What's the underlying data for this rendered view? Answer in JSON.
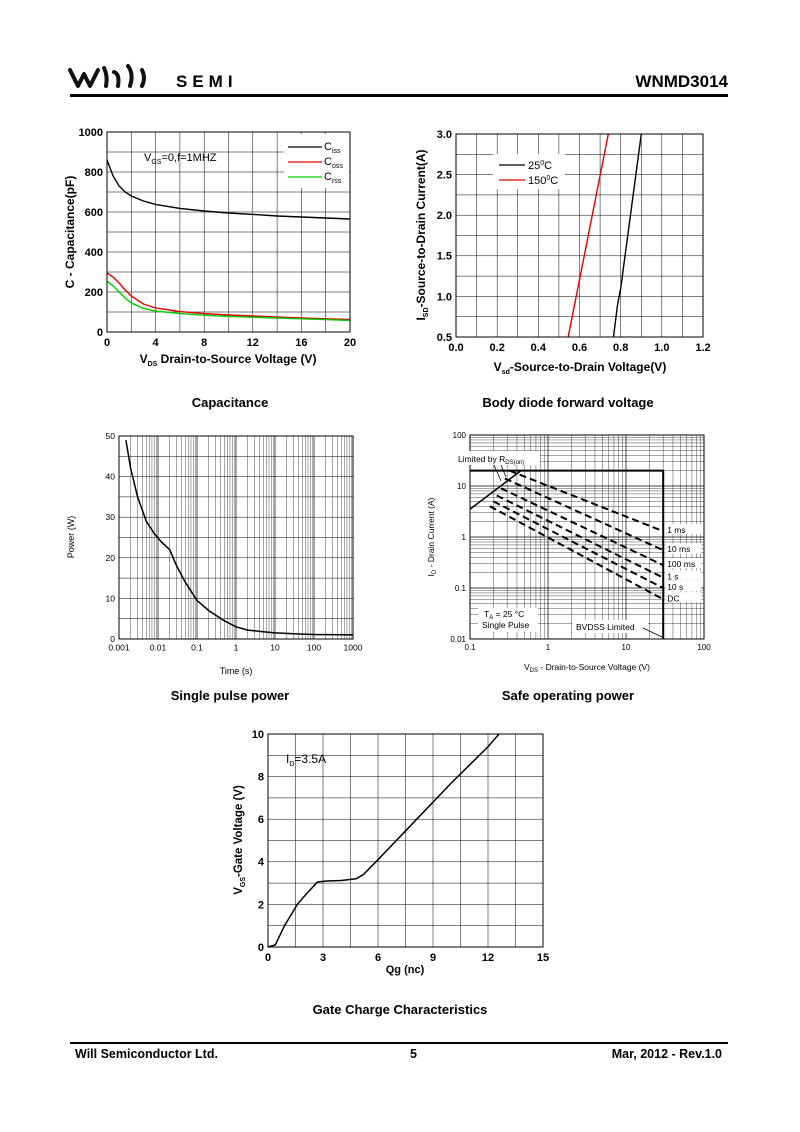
{
  "header": {
    "brand": "SEMI",
    "part_number": "WNMD3014"
  },
  "footer": {
    "company": "Will Semiconductor Ltd.",
    "page": "5",
    "revision": "Mar, 2012 - Rev.1.0"
  },
  "colors": {
    "black": "#000000",
    "red": "#e00000",
    "green": "#00cc00"
  },
  "chart_data": [
    {
      "id": "capacitance",
      "type": "line",
      "caption": "Capacitance",
      "xlabel": "V_DS Drain-to-Source Voltage (V)",
      "ylabel": "C - Capacitance(pF)",
      "annotation": "V_GS=0,f=1MHZ",
      "xlim": [
        0,
        20
      ],
      "ylim": [
        0,
        1000
      ],
      "xticks": [
        0,
        4,
        8,
        12,
        16,
        20
      ],
      "yticks": [
        0,
        200,
        400,
        600,
        800,
        1000
      ],
      "legend_position": "top-right",
      "series": [
        {
          "name": "C_iss",
          "color": "#000000",
          "x": [
            0,
            0.5,
            1,
            1.5,
            2,
            3,
            4,
            6,
            8,
            10,
            12,
            14,
            16,
            18,
            20
          ],
          "y": [
            860,
            780,
            730,
            700,
            680,
            655,
            638,
            618,
            605,
            595,
            588,
            580,
            575,
            570,
            565
          ]
        },
        {
          "name": "C_oss",
          "color": "#e00000",
          "x": [
            0,
            0.5,
            1,
            1.5,
            2,
            3,
            4,
            6,
            8,
            10,
            12,
            14,
            16,
            18,
            20
          ],
          "y": [
            295,
            275,
            245,
            210,
            180,
            140,
            120,
            102,
            92,
            85,
            80,
            75,
            70,
            66,
            63
          ]
        },
        {
          "name": "C_rss",
          "color": "#00cc00",
          "x": [
            0,
            0.5,
            1,
            1.5,
            2,
            3,
            4,
            6,
            8,
            10,
            12,
            14,
            16,
            18,
            20
          ],
          "y": [
            255,
            230,
            200,
            170,
            145,
            118,
            105,
            92,
            84,
            78,
            74,
            70,
            66,
            62,
            58
          ]
        }
      ]
    },
    {
      "id": "body-diode",
      "type": "line",
      "caption": "Body diode forward voltage",
      "xlabel": "V_sd-Source-to-Drain Voltage(V)",
      "ylabel": "I_SD-Source-to-Drain Current(A)",
      "xlim": [
        0,
        1.2
      ],
      "ylim": [
        0.5,
        3.0
      ],
      "xticks": [
        0.0,
        0.2,
        0.4,
        0.6,
        0.8,
        1.0,
        1.2
      ],
      "yticks": [
        0.5,
        1.0,
        1.5,
        2.0,
        2.5,
        3.0
      ],
      "legend_position": "top-left",
      "series": [
        {
          "name": "25°C",
          "color": "#000000",
          "x": [
            0.765,
            0.775,
            0.785,
            0.8,
            0.9
          ],
          "y": [
            0.5,
            0.7,
            0.9,
            1.1,
            3.0
          ]
        },
        {
          "name": "150°C",
          "color": "#e00000",
          "x": [
            0.545,
            0.74
          ],
          "y": [
            0.5,
            3.0
          ]
        }
      ]
    },
    {
      "id": "single-pulse-power",
      "type": "line",
      "caption": "Single pulse power",
      "xlabel": "Time (s)",
      "ylabel": "Power (W)",
      "xscale": "log",
      "xlim": [
        0.001,
        1000
      ],
      "ylim": [
        0,
        50
      ],
      "xticks": [
        "0.001",
        "0.01",
        "0.1",
        "1",
        "10",
        "100",
        "1000"
      ],
      "yticks": [
        0,
        10,
        20,
        30,
        40,
        50
      ],
      "series": [
        {
          "x": [
            0.0015,
            0.002,
            0.003,
            0.005,
            0.008,
            0.012,
            0.02,
            0.03,
            0.05,
            0.1,
            0.2,
            0.5,
            1,
            2,
            5,
            10,
            50,
            100,
            1000
          ],
          "y": [
            49,
            42,
            35,
            29,
            26,
            24,
            22,
            18,
            14,
            9.5,
            7,
            4.5,
            3,
            2.2,
            1.8,
            1.5,
            1.2,
            1.1,
            1.0
          ]
        }
      ]
    },
    {
      "id": "safe-operating-area",
      "type": "line",
      "caption": "Safe operating power",
      "xlabel": "V_DS - Drain-to-Source Voltage (V)",
      "ylabel": "I_D - Drain Current (A)",
      "xscale": "log",
      "yscale": "log",
      "xlim": [
        0.1,
        100
      ],
      "ylim": [
        0.01,
        100
      ],
      "xticks": [
        "0.1",
        "1",
        "10",
        "100"
      ],
      "yticks": [
        "0.01",
        "0.1",
        "1",
        "10",
        "100"
      ],
      "annotations": [
        "Limited by R_DS(on)",
        "T_A = 25 °C",
        "Single Pulse",
        "BVDSS Limited"
      ],
      "series": [
        {
          "name": "1 ms",
          "x": [
            0.32,
            30
          ],
          "y": [
            20,
            1.3
          ]
        },
        {
          "name": "10 ms",
          "x": [
            0.28,
            30
          ],
          "y": [
            14,
            0.55
          ]
        },
        {
          "name": "100 ms",
          "x": [
            0.25,
            30
          ],
          "y": [
            9,
            0.28
          ]
        },
        {
          "name": "1 s",
          "x": [
            0.22,
            30
          ],
          "y": [
            6.5,
            0.16
          ]
        },
        {
          "name": "10 s",
          "x": [
            0.2,
            30
          ],
          "y": [
            5,
            0.1
          ]
        },
        {
          "name": "DC",
          "x": [
            0.18,
            30
          ],
          "y": [
            4,
            0.06
          ]
        }
      ]
    },
    {
      "id": "gate-charge",
      "type": "line",
      "caption": "Gate Charge Characteristics",
      "xlabel": "Qg (nc)",
      "ylabel": "V_GS-Gate Voltage (V)",
      "annotation": "I_D=3.5A",
      "xlim": [
        0,
        15
      ],
      "ylim": [
        0,
        10
      ],
      "xticks": [
        0,
        3,
        6,
        9,
        12,
        15
      ],
      "yticks": [
        0,
        2,
        4,
        6,
        8,
        10
      ],
      "series": [
        {
          "x": [
            0,
            0.4,
            0.9,
            1.6,
            2.1,
            2.7,
            3.2,
            4.0,
            4.8,
            5.2,
            6.0,
            8.0,
            10.0,
            12.0,
            12.6
          ],
          "y": [
            0,
            0.1,
            1.0,
            2.0,
            2.5,
            3.05,
            3.1,
            3.12,
            3.2,
            3.4,
            4.1,
            5.9,
            7.7,
            9.4,
            10.0
          ]
        }
      ]
    }
  ]
}
